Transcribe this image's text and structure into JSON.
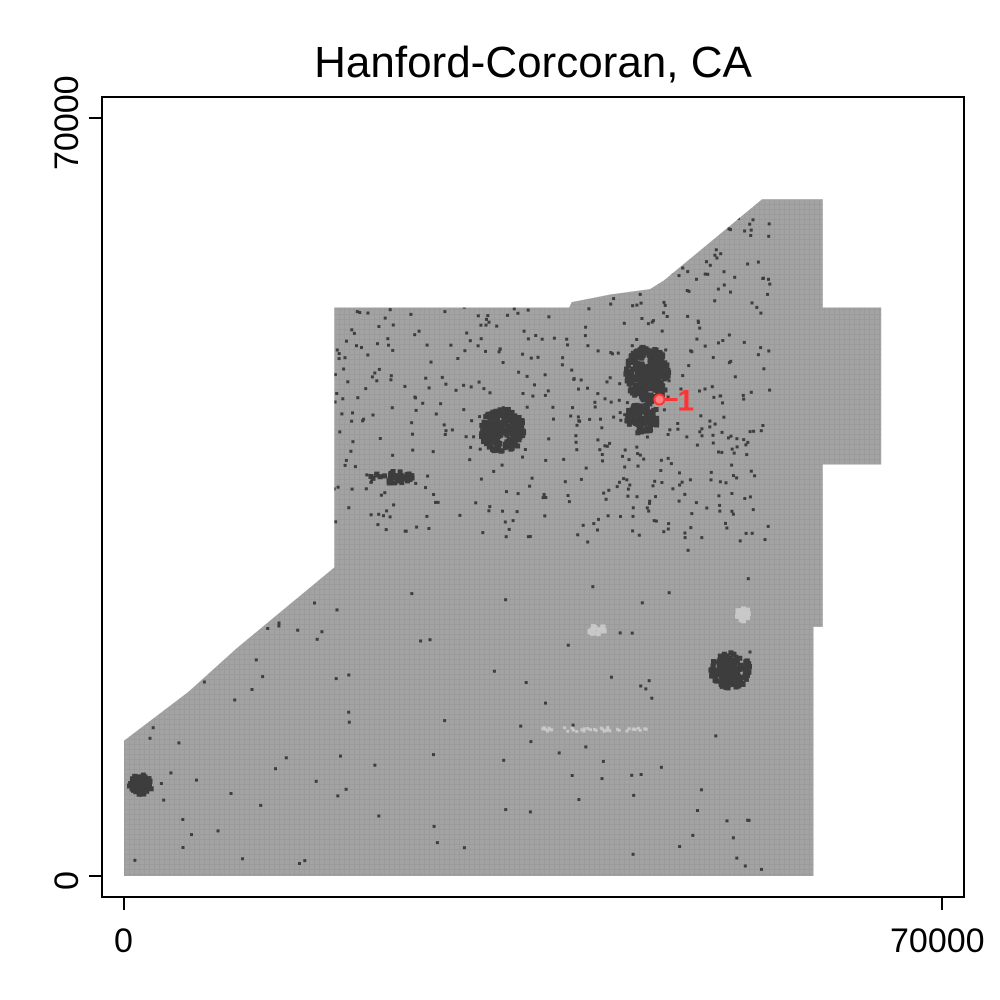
{
  "chart_data": {
    "type": "map",
    "title": "Hanford-Corcoran, CA",
    "xlim": [
      0,
      70000
    ],
    "ylim": [
      0,
      70000
    ],
    "x_ticks": [
      "0",
      "70000"
    ],
    "y_ticks": [
      "0",
      "70000"
    ],
    "region_color": "#9b9b9b",
    "urban_color": "#3d3d3d",
    "light_color": "#c8c8c8",
    "marker": {
      "label": "1",
      "x": 46500,
      "y": 44000,
      "color": "#ff3333"
    },
    "region_outline": [
      [
        0,
        0
      ],
      [
        59000,
        0
      ],
      [
        59000,
        23000
      ],
      [
        59800,
        23000
      ],
      [
        59800,
        38000
      ],
      [
        64800,
        38000
      ],
      [
        64800,
        52500
      ],
      [
        59800,
        52500
      ],
      [
        59800,
        62500
      ],
      [
        54600,
        62500
      ],
      [
        46200,
        55000
      ],
      [
        45000,
        54200
      ],
      [
        41600,
        53700
      ],
      [
        38300,
        53000
      ],
      [
        38100,
        52500
      ],
      [
        18000,
        52500
      ],
      [
        18000,
        28500
      ],
      [
        9600,
        21000
      ],
      [
        5500,
        17000
      ],
      [
        0,
        12500
      ]
    ]
  }
}
